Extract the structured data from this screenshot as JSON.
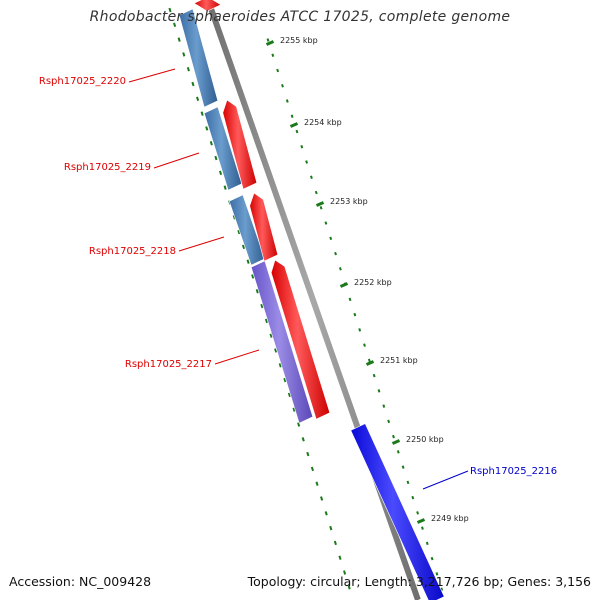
{
  "title": "Rhodobacter sphaeroides ATCC 17025, complete genome",
  "footer": {
    "accession": "Accession: NC_009428",
    "summary": "Topology: circular; Length: 3,217,726 bp; Genes: 3,156"
  },
  "colors": {
    "backbone": "#8a8a8a",
    "tick": "#1a7a1a",
    "gene_forward": "#ff1010",
    "gene_reverse_blue": "#4a7fb8",
    "gene_reverse_purple": "#7a68d8",
    "gene_selected": "#1414ee",
    "label_red": "#dd0000",
    "label_blue": "#0000cc"
  },
  "scale_labels": [
    "2255 kbp",
    "2254 kbp",
    "2253 kbp",
    "2252 kbp",
    "2251 kbp",
    "2250 kbp",
    "2249 kbp"
  ],
  "genes": [
    {
      "label": "Rsph17025_2220",
      "strand": "reverse",
      "color_key": "gene_reverse_blue",
      "label_color_key": "label_red"
    },
    {
      "label": "Rsph17025_2219",
      "strand": "reverse",
      "color_key": "gene_reverse_blue",
      "label_color_key": "label_red"
    },
    {
      "label": "Rsph17025_2218",
      "strand": "reverse",
      "color_key": "gene_reverse_blue",
      "label_color_key": "label_red"
    },
    {
      "label": "Rsph17025_2217",
      "strand": "reverse",
      "color_key": "gene_reverse_purple",
      "label_color_key": "label_red"
    },
    {
      "label": "Rsph17025_2216",
      "strand": "forward",
      "color_key": "gene_selected",
      "label_color_key": "label_blue"
    }
  ],
  "forward_features": [
    {
      "strand": "forward",
      "color_key": "gene_forward"
    },
    {
      "strand": "forward",
      "color_key": "gene_forward"
    },
    {
      "strand": "forward",
      "color_key": "gene_forward"
    },
    {
      "strand": "forward",
      "color_key": "gene_forward"
    }
  ]
}
